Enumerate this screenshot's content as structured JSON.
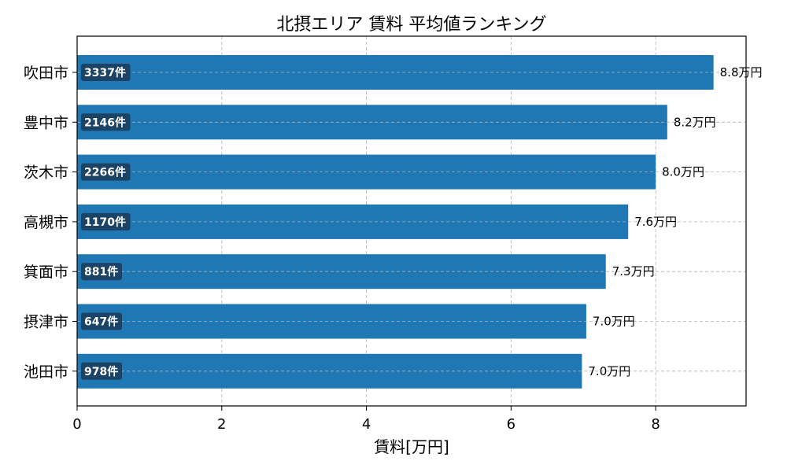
{
  "chart_data": {
    "type": "bar",
    "orientation": "horizontal",
    "title": "北摂エリア 賃料 平均値ランキング",
    "xlabel": "賃料[万円]",
    "ylabel": "",
    "categories": [
      "吹田市",
      "豊中市",
      "茨木市",
      "高槻市",
      "箕面市",
      "摂津市",
      "池田市"
    ],
    "values": [
      8.8,
      8.16,
      8.0,
      7.62,
      7.31,
      7.04,
      6.98
    ],
    "value_labels": [
      "8.8万円",
      "8.2万円",
      "8.0万円",
      "7.6万円",
      "7.3万円",
      "7.0万円",
      "7.0万円"
    ],
    "count_labels": [
      "3337件",
      "2146件",
      "2266件",
      "1170件",
      "881件",
      "647件",
      "978件"
    ],
    "xlim": [
      0,
      9.25
    ],
    "xticks": [
      0,
      2,
      4,
      6,
      8
    ],
    "xtick_labels": [
      "0",
      "2",
      "4",
      "6",
      "8"
    ],
    "grid": true,
    "legend": false,
    "colors": {
      "bar": "#1f77b4",
      "count_box": "#1b3d5c",
      "grid": "#b0b0b0",
      "axis": "#000000"
    }
  }
}
